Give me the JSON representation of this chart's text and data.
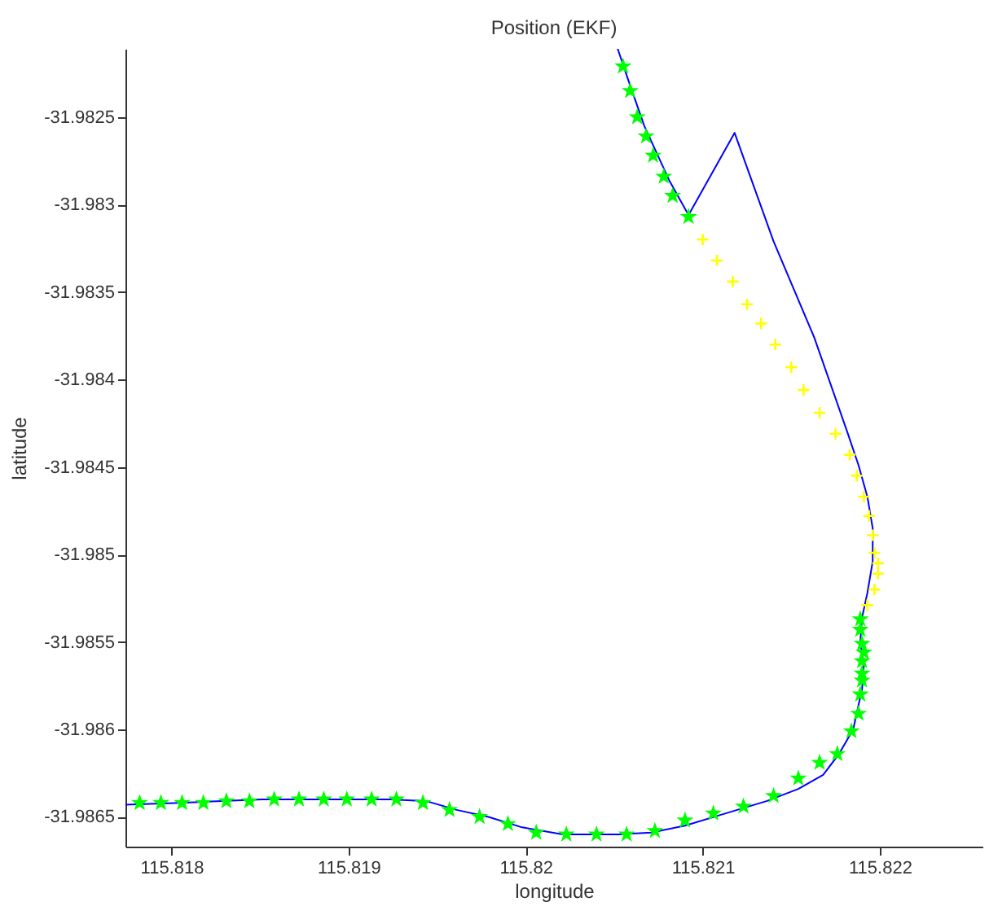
{
  "chart_data": {
    "type": "line",
    "title": "Position (EKF)",
    "xlabel": "longitude",
    "ylabel": "latitude",
    "xlim": [
      115.81774,
      115.82258
    ],
    "ylim": [
      -31.98667,
      -31.98211
    ],
    "xticks": [
      115.818,
      115.819,
      115.82,
      115.821,
      115.822
    ],
    "yticks": [
      -31.9865,
      -31.986,
      -31.9855,
      -31.985,
      -31.9845,
      -31.984,
      -31.9835,
      -31.983,
      -31.9825
    ],
    "grid": false,
    "series": [
      {
        "color": "#0000ff",
        "x": [
          115.82052,
          115.82058,
          115.82067,
          115.82081,
          115.82092,
          115.82118,
          115.8214,
          115.82163,
          115.82182,
          115.82188,
          115.82193,
          115.82196,
          115.82196,
          115.82193,
          115.8219,
          115.82189,
          115.82191,
          115.8219,
          115.82188,
          115.82185,
          115.82177,
          115.82168,
          115.82154,
          115.82136,
          115.82113,
          115.8209,
          115.82071,
          115.82053,
          115.82021,
          115.81998,
          115.81979,
          115.81961,
          115.81944,
          115.81924,
          115.81851,
          115.81805,
          115.81774
        ],
        "values": [
          -31.98211,
          -31.98229,
          -31.98255,
          -31.98286,
          -31.98306,
          -31.98259,
          -31.98321,
          -31.98376,
          -31.98431,
          -31.98449,
          -31.98467,
          -31.98485,
          -31.98504,
          -31.98522,
          -31.98536,
          -31.9855,
          -31.98563,
          -31.98577,
          -31.98586,
          -31.986,
          -31.98614,
          -31.98626,
          -31.98634,
          -31.98641,
          -31.98648,
          -31.98655,
          -31.98659,
          -31.9866,
          -31.9866,
          -31.98656,
          -31.9865,
          -31.98646,
          -31.98641,
          -31.9864,
          -31.9864,
          -31.98642,
          -31.98643
        ]
      },
      {
        "type": "scatter",
        "color": "#00ff00",
        "marker": "star",
        "x": [
          115.82055,
          115.82059,
          115.82063,
          115.82068,
          115.82072,
          115.82078,
          115.82083,
          115.82092,
          115.82189,
          115.82189,
          115.8219,
          115.82191,
          115.8219,
          115.8219,
          115.8219,
          115.82189,
          115.82188,
          115.82184,
          115.82176,
          115.82166,
          115.82154,
          115.8214,
          115.82123,
          115.82106,
          115.8209,
          115.82073,
          115.82057,
          115.8204,
          115.82023,
          115.82006,
          115.8199,
          115.81974,
          115.81957,
          115.81942,
          115.81927,
          115.81913,
          115.81899,
          115.81886,
          115.81872,
          115.81858,
          115.81844,
          115.81831,
          115.81818,
          115.81806,
          115.81794,
          115.81782
        ],
        "values": [
          -31.98221,
          -31.98235,
          -31.9825,
          -31.98261,
          -31.98272,
          -31.98284,
          -31.98295,
          -31.98307,
          -31.98537,
          -31.98543,
          -31.98551,
          -31.98556,
          -31.98561,
          -31.98568,
          -31.98572,
          -31.9858,
          -31.98591,
          -31.98601,
          -31.98614,
          -31.98619,
          -31.98628,
          -31.98638,
          -31.98644,
          -31.98648,
          -31.98652,
          -31.98658,
          -31.9866,
          -31.9866,
          -31.9866,
          -31.98659,
          -31.98654,
          -31.9865,
          -31.98646,
          -31.98642,
          -31.9864,
          -31.9864,
          -31.9864,
          -31.9864,
          -31.9864,
          -31.9864,
          -31.98641,
          -31.98641,
          -31.98642,
          -31.98642,
          -31.98642,
          -31.98642
        ]
      },
      {
        "type": "scatter",
        "color": "#ffff00",
        "marker": "cross",
        "x": [
          115.821,
          115.82108,
          115.82117,
          115.82125,
          115.82133,
          115.82141,
          115.8215,
          115.82157,
          115.82166,
          115.82175,
          115.82183,
          115.82187,
          115.82191,
          115.82194,
          115.82196,
          115.82197,
          115.82199,
          115.82199,
          115.82197,
          115.82193
        ],
        "values": [
          -31.9832,
          -31.98332,
          -31.98344,
          -31.98357,
          -31.98368,
          -31.9838,
          -31.98393,
          -31.98406,
          -31.98419,
          -31.98431,
          -31.98443,
          -31.98455,
          -31.98467,
          -31.98478,
          -31.98489,
          -31.98499,
          -31.98505,
          -31.98511,
          -31.9852,
          -31.98529
        ]
      }
    ]
  }
}
